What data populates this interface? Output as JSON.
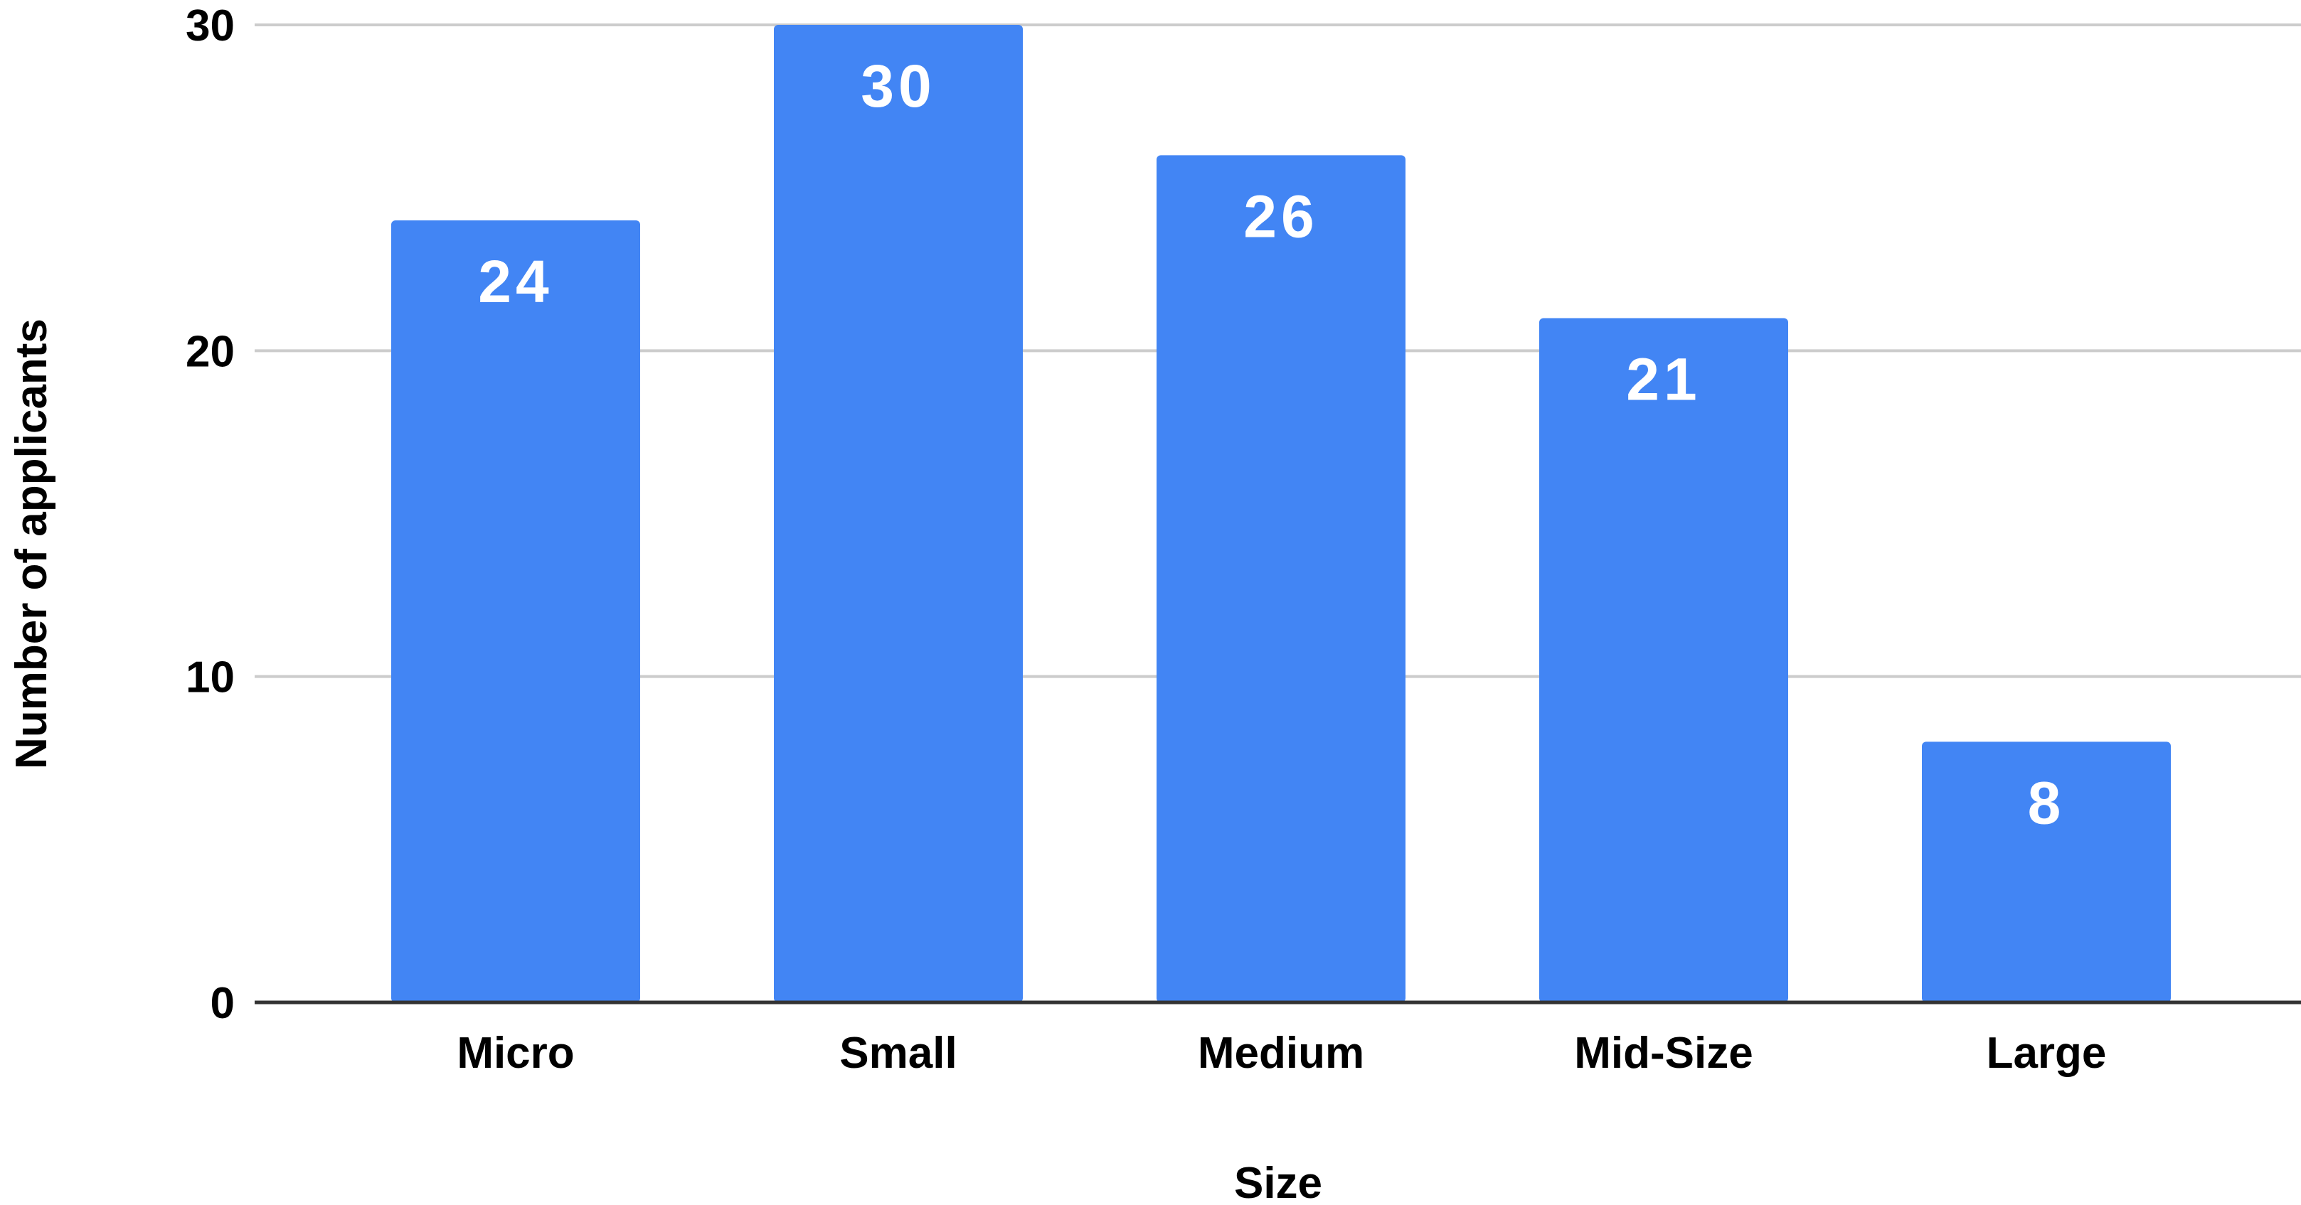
{
  "chart_data": {
    "type": "bar",
    "categories": [
      "Micro",
      "Small",
      "Medium",
      "Mid-Size",
      "Large"
    ],
    "values": [
      24,
      30,
      26,
      21,
      8
    ],
    "data_labels": [
      "24",
      "30",
      "26",
      "21",
      "8"
    ],
    "title": "",
    "xlabel": "Size",
    "ylabel": "Number of applicants",
    "ylim": [
      0,
      30
    ],
    "yticks": [
      0,
      10,
      20,
      30
    ],
    "ytick_labels": [
      "0",
      "10",
      "20",
      "30"
    ],
    "grid": true,
    "legend": "none",
    "colors": {
      "bar": "#4285F4",
      "grid": "#cccccc",
      "axis": "#333333",
      "text": "#000000",
      "data_label": "#ffffff"
    }
  }
}
